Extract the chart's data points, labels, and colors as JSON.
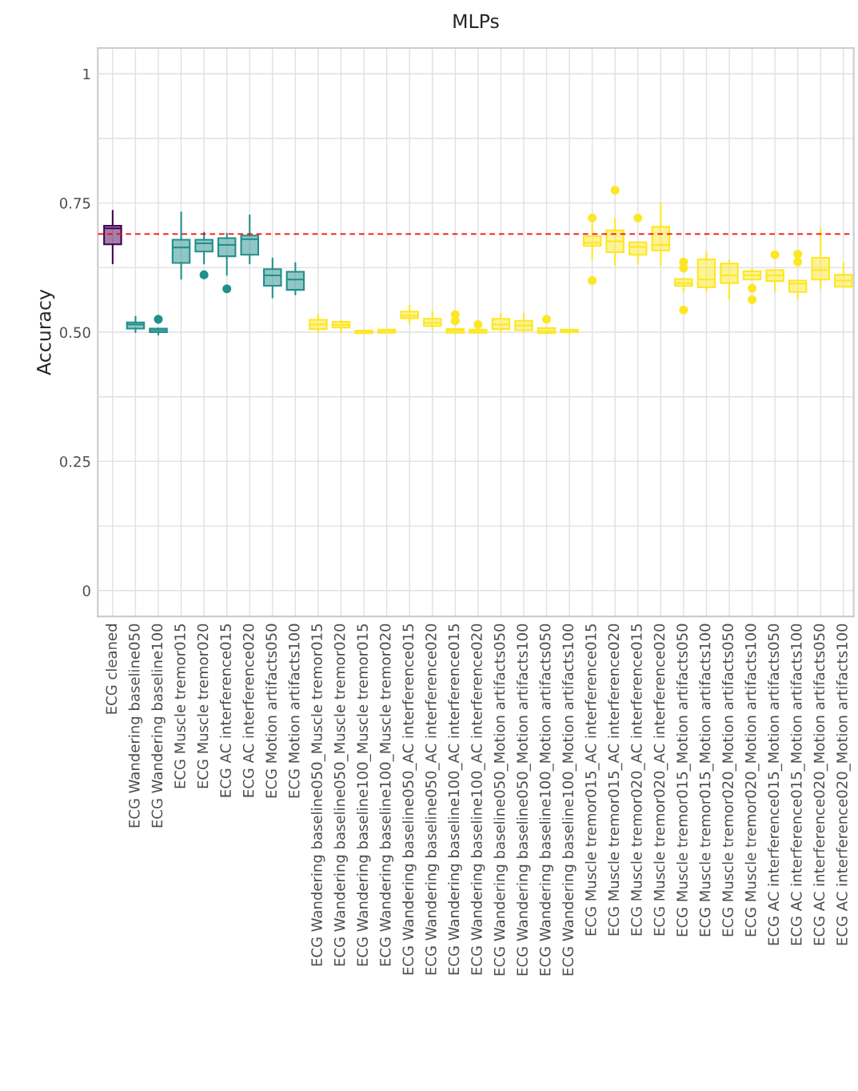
{
  "chart_data": {
    "type": "box",
    "title": "MLPs",
    "ylabel": "Accuracy",
    "categories": [
      "ECG cleaned",
      "ECG Wandering baseline050",
      "ECG Wandering baseline100",
      "ECG Muscle tremor015",
      "ECG Muscle tremor020",
      "ECG AC interference015",
      "ECG AC interference020",
      "ECG Motion artifacts050",
      "ECG Motion artifacts100",
      "ECG Wandering baseline050_Muscle tremor015",
      "ECG Wandering baseline050_Muscle tremor020",
      "ECG Wandering baseline100_Muscle tremor015",
      "ECG Wandering baseline100_Muscle tremor020",
      "ECG Wandering baseline050_AC interference015",
      "ECG Wandering baseline050_AC interference020",
      "ECG Wandering baseline100_AC interference015",
      "ECG Wandering baseline100_AC interference020",
      "ECG Wandering baseline050_Motion artifacts050",
      "ECG Wandering baseline050_Motion artifacts100",
      "ECG Wandering baseline100_Motion artifacts050",
      "ECG Wandering baseline100_Motion artifacts100",
      "ECG Muscle tremor015_AC interference015",
      "ECG Muscle tremor015_AC interference020",
      "ECG Muscle tremor020_AC interference015",
      "ECG Muscle tremor020_AC interference020",
      "ECG Muscle tremor015_Motion artifacts050",
      "ECG Muscle tremor015_Motion artifacts100",
      "ECG Muscle tremor020_Motion artifacts050",
      "ECG Muscle tremor020_Motion artifacts100",
      "ECG AC interference015_Motion artifacts050",
      "ECG AC interference015_Motion artifacts100",
      "ECG AC interference020_Motion artifacts050",
      "ECG AC interference020_Motion artifacts100"
    ],
    "boxes": [
      {
        "low": 0.633,
        "q1": 0.67,
        "median": 0.701,
        "q3": 0.706,
        "high": 0.735
      },
      {
        "low": 0.5,
        "q1": 0.507,
        "median": 0.515,
        "q3": 0.519,
        "high": 0.53
      },
      {
        "low": 0.495,
        "q1": 0.5,
        "median": 0.504,
        "q3": 0.507,
        "high": 0.507,
        "outliers": [
          0.525
        ]
      },
      {
        "low": 0.603,
        "q1": 0.634,
        "median": 0.664,
        "q3": 0.679,
        "high": 0.732
      },
      {
        "low": 0.633,
        "q1": 0.656,
        "median": 0.672,
        "q3": 0.679,
        "high": 0.693,
        "outliers": [
          0.611
        ]
      },
      {
        "low": 0.611,
        "q1": 0.647,
        "median": 0.669,
        "q3": 0.682,
        "high": 0.691,
        "outliers": [
          0.584
        ]
      },
      {
        "low": 0.633,
        "q1": 0.65,
        "median": 0.68,
        "q3": 0.687,
        "high": 0.726
      },
      {
        "low": 0.567,
        "q1": 0.59,
        "median": 0.61,
        "q3": 0.622,
        "high": 0.643
      },
      {
        "low": 0.573,
        "q1": 0.582,
        "median": 0.602,
        "q3": 0.617,
        "high": 0.634
      },
      {
        "low": 0.5,
        "q1": 0.506,
        "median": 0.515,
        "q3": 0.524,
        "high": 0.535
      },
      {
        "low": 0.5,
        "q1": 0.509,
        "median": 0.514,
        "q3": 0.52,
        "high": 0.523
      },
      {
        "low": 0.498,
        "q1": 0.498,
        "median": 0.501,
        "q3": 0.503,
        "high": 0.503
      },
      {
        "low": 0.499,
        "q1": 0.499,
        "median": 0.502,
        "q3": 0.505,
        "high": 0.505
      },
      {
        "low": 0.517,
        "q1": 0.527,
        "median": 0.532,
        "q3": 0.54,
        "high": 0.552
      },
      {
        "low": 0.505,
        "q1": 0.512,
        "median": 0.518,
        "q3": 0.526,
        "high": 0.54
      },
      {
        "low": 0.499,
        "q1": 0.499,
        "median": 0.503,
        "q3": 0.506,
        "high": 0.506,
        "outliers": [
          0.522,
          0.534
        ]
      },
      {
        "low": 0.499,
        "q1": 0.499,
        "median": 0.502,
        "q3": 0.505,
        "high": 0.505,
        "outliers": [
          0.515
        ]
      },
      {
        "low": 0.5,
        "q1": 0.506,
        "median": 0.515,
        "q3": 0.526,
        "high": 0.536
      },
      {
        "low": 0.5,
        "q1": 0.504,
        "median": 0.513,
        "q3": 0.522,
        "high": 0.536
      },
      {
        "low": 0.498,
        "q1": 0.498,
        "median": 0.502,
        "q3": 0.508,
        "high": 0.508,
        "outliers": [
          0.525
        ]
      },
      {
        "low": 0.497,
        "q1": 0.5,
        "median": 0.502,
        "q3": 0.505,
        "high": 0.505
      },
      {
        "low": 0.641,
        "q1": 0.667,
        "median": 0.673,
        "q3": 0.686,
        "high": 0.709,
        "outliers": [
          0.721,
          0.6
        ]
      },
      {
        "low": 0.63,
        "q1": 0.655,
        "median": 0.676,
        "q3": 0.697,
        "high": 0.72,
        "outliers": [
          0.775
        ]
      },
      {
        "low": 0.633,
        "q1": 0.65,
        "median": 0.665,
        "q3": 0.674,
        "high": 0.674,
        "outliers": [
          0.721
        ]
      },
      {
        "low": 0.63,
        "q1": 0.658,
        "median": 0.669,
        "q3": 0.704,
        "high": 0.75
      },
      {
        "low": 0.579,
        "q1": 0.59,
        "median": 0.595,
        "q3": 0.603,
        "high": 0.603,
        "outliers": [
          0.636,
          0.624,
          0.543
        ]
      },
      {
        "low": 0.579,
        "q1": 0.587,
        "median": 0.602,
        "q3": 0.641,
        "high": 0.655
      },
      {
        "low": 0.565,
        "q1": 0.595,
        "median": 0.61,
        "q3": 0.633,
        "high": 0.639
      },
      {
        "low": 0.602,
        "q1": 0.602,
        "median": 0.61,
        "q3": 0.618,
        "high": 0.622,
        "outliers": [
          0.585,
          0.563
        ]
      },
      {
        "low": 0.579,
        "q1": 0.599,
        "median": 0.61,
        "q3": 0.62,
        "high": 0.62,
        "outliers": [
          0.65
        ]
      },
      {
        "low": 0.565,
        "q1": 0.578,
        "median": 0.594,
        "q3": 0.6,
        "high": 0.6,
        "outliers": [
          0.651,
          0.636
        ]
      },
      {
        "low": 0.585,
        "q1": 0.602,
        "median": 0.62,
        "q3": 0.644,
        "high": 0.699
      },
      {
        "low": 0.588,
        "q1": 0.588,
        "median": 0.6,
        "q3": 0.611,
        "high": 0.634
      }
    ],
    "colors": [
      "#440154",
      "#21908c",
      "#21908c",
      "#21908c",
      "#21908c",
      "#21908c",
      "#21908c",
      "#21908c",
      "#21908c",
      "#fde725",
      "#fde725",
      "#fde725",
      "#fde725",
      "#fde725",
      "#fde725",
      "#fde725",
      "#fde725",
      "#fde725",
      "#fde725",
      "#fde725",
      "#fde725",
      "#fde725",
      "#fde725",
      "#fde725",
      "#fde725",
      "#fde725",
      "#fde725",
      "#fde725",
      "#fde725",
      "#fde725",
      "#fde725",
      "#fde725",
      "#fde725"
    ],
    "ylim": [
      -0.05,
      1.05
    ],
    "yticks": [
      0,
      {
        "value": 0.125,
        "label": null
      },
      0.25,
      {
        "value": 0.375,
        "label": null
      },
      {
        "value": 0.5,
        "label": "0.50"
      },
      {
        "value": 0.625,
        "label": null
      },
      0.75,
      {
        "value": 0.875,
        "label": null
      },
      1
    ],
    "ref_lines": [
      {
        "axis": "y",
        "value": 0.69,
        "color": "#ff0000",
        "line_style": "dashed"
      }
    ],
    "grid": true,
    "legend": false
  }
}
